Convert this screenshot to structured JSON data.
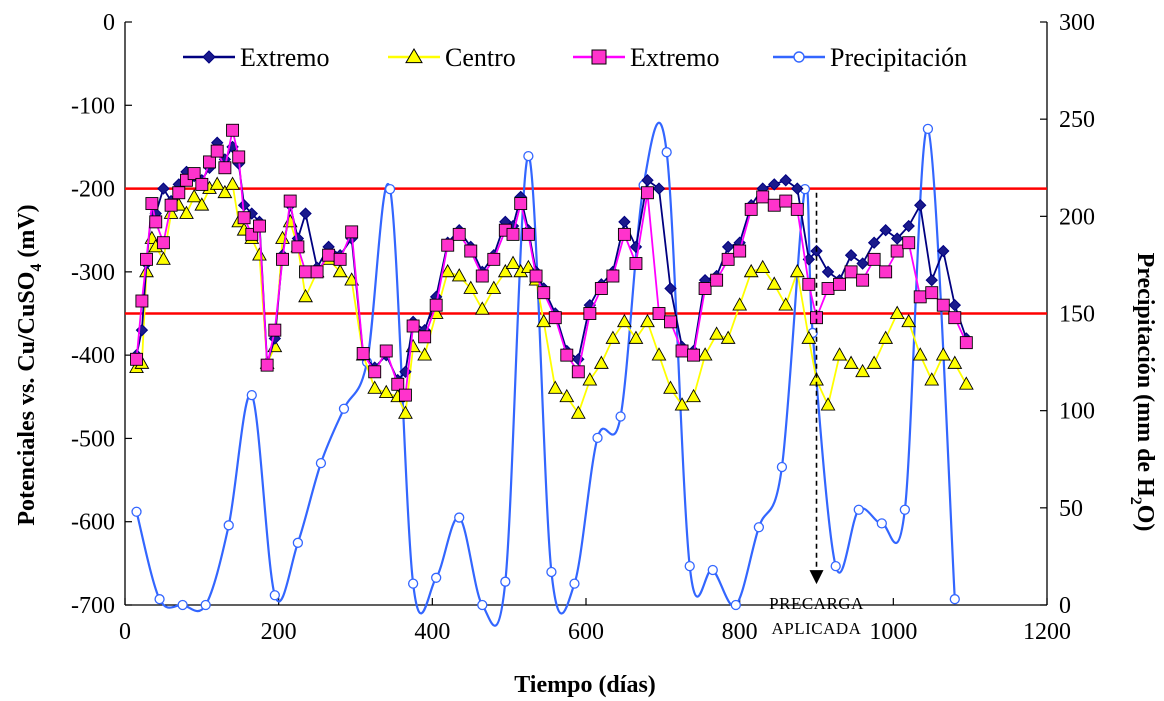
{
  "chart_data": {
    "type": "line",
    "xlabel": "Tiempo (días)",
    "ylabel_left": "Potenciales vs. Cu/CuSO",
    "ylabel_left_sub": "4",
    "ylabel_left_unit": "(mV)",
    "ylabel_right": "Precipitación (mm de H",
    "ylabel_right_sub": "2",
    "ylabel_right_unit": "O)",
    "xlim": [
      0,
      1200
    ],
    "ylim_left": [
      -700,
      0
    ],
    "ylim_right": [
      0,
      300
    ],
    "x_ticks": [
      "0",
      "200",
      "400",
      "600",
      "800",
      "1000",
      "1200"
    ],
    "y_left_ticks": [
      "0",
      "-100",
      "-200",
      "-300",
      "-400",
      "-500",
      "-600",
      "-700"
    ],
    "y_right_ticks": [
      "300",
      "250",
      "200",
      "150",
      "100",
      "50",
      "0"
    ],
    "grid": false,
    "legend_placement": "top",
    "reference_lines": [
      {
        "y": -200,
        "color": "#ff0000"
      },
      {
        "y": -350,
        "color": "#ff0000"
      }
    ],
    "annotation": {
      "line1": "PRECARGA",
      "line2": "APLICADA",
      "arrow_x": 900,
      "arrow_from_y": -205,
      "arrow_to_y": -675
    },
    "series": [
      {
        "name": "Extremo",
        "axis": "left",
        "marker": "diamond",
        "color": "#000080",
        "fill": "#1a1a8c",
        "x": [
          15,
          22,
          28,
          35,
          40,
          50,
          60,
          70,
          80,
          90,
          100,
          110,
          120,
          130,
          140,
          148,
          155,
          165,
          175,
          185,
          195,
          205,
          215,
          225,
          235,
          250,
          265,
          280,
          295,
          310,
          325,
          340,
          355,
          365,
          375,
          390,
          405,
          420,
          435,
          450,
          465,
          480,
          495,
          505,
          515,
          525,
          535,
          545,
          560,
          575,
          590,
          605,
          620,
          635,
          650,
          665,
          680,
          695,
          710,
          725,
          740,
          755,
          770,
          785,
          800,
          815,
          830,
          845,
          860,
          875,
          890,
          900,
          915,
          930,
          945,
          960,
          975,
          990,
          1005,
          1020,
          1035,
          1050,
          1065,
          1080,
          1095
        ],
        "values": [
          -400,
          -370,
          -290,
          -220,
          -230,
          -200,
          -215,
          -195,
          -180,
          -185,
          -190,
          -175,
          -145,
          -165,
          -150,
          -170,
          -220,
          -230,
          -240,
          -410,
          -380,
          -280,
          -220,
          -260,
          -230,
          -295,
          -270,
          -280,
          -260,
          -400,
          -415,
          -400,
          -430,
          -420,
          -360,
          -370,
          -330,
          -265,
          -250,
          -270,
          -300,
          -280,
          -240,
          -245,
          -210,
          -250,
          -300,
          -320,
          -350,
          -395,
          -405,
          -340,
          -315,
          -300,
          -240,
          -270,
          -190,
          -200,
          -320,
          -390,
          -395,
          -310,
          -305,
          -270,
          -265,
          -220,
          -200,
          -195,
          -190,
          -200,
          -285,
          -275,
          -300,
          -310,
          -280,
          -290,
          -265,
          -250,
          -260,
          -245,
          -220,
          -310,
          -275,
          -340,
          -380
        ]
      },
      {
        "name": "Centro",
        "axis": "left",
        "marker": "triangle",
        "color": "#ffff00",
        "fill": "#ffff00",
        "x": [
          15,
          22,
          28,
          35,
          40,
          50,
          60,
          70,
          80,
          90,
          100,
          110,
          120,
          130,
          140,
          148,
          155,
          165,
          175,
          185,
          195,
          205,
          215,
          225,
          235,
          250,
          265,
          280,
          295,
          310,
          325,
          340,
          355,
          365,
          375,
          390,
          405,
          420,
          435,
          450,
          465,
          480,
          495,
          505,
          515,
          525,
          535,
          545,
          560,
          575,
          590,
          605,
          620,
          635,
          650,
          665,
          680,
          695,
          710,
          725,
          740,
          755,
          770,
          785,
          800,
          815,
          830,
          845,
          860,
          875,
          890,
          900,
          915,
          930,
          945,
          960,
          975,
          990,
          1005,
          1020,
          1035,
          1050,
          1065,
          1080,
          1095
        ],
        "values": [
          -415,
          -410,
          -300,
          -260,
          -270,
          -285,
          -230,
          -220,
          -230,
          -210,
          -220,
          -200,
          -195,
          -205,
          -195,
          -240,
          -250,
          -260,
          -280,
          -410,
          -390,
          -260,
          -240,
          -270,
          -330,
          -300,
          -285,
          -300,
          -310,
          -400,
          -440,
          -445,
          -450,
          -470,
          -390,
          -400,
          -350,
          -300,
          -305,
          -320,
          -345,
          -320,
          -300,
          -290,
          -300,
          -295,
          -310,
          -360,
          -440,
          -450,
          -470,
          -430,
          -410,
          -380,
          -360,
          -380,
          -360,
          -400,
          -440,
          -460,
          -450,
          -400,
          -375,
          -380,
          -340,
          -300,
          -295,
          -315,
          -340,
          -300,
          -380,
          -430,
          -460,
          -400,
          -410,
          -420,
          -410,
          -380,
          -350,
          -360,
          -400,
          -430,
          -400,
          -410,
          -435
        ]
      },
      {
        "name": "Extremo",
        "axis": "left",
        "marker": "square",
        "color": "#ff00ff",
        "fill": "#ff33cc",
        "x": [
          15,
          22,
          28,
          35,
          40,
          50,
          60,
          70,
          80,
          90,
          100,
          110,
          120,
          130,
          140,
          148,
          155,
          165,
          175,
          185,
          195,
          205,
          215,
          225,
          235,
          250,
          265,
          280,
          295,
          310,
          325,
          340,
          355,
          365,
          375,
          390,
          405,
          420,
          435,
          450,
          465,
          480,
          495,
          505,
          515,
          525,
          535,
          545,
          560,
          575,
          590,
          605,
          620,
          635,
          650,
          665,
          680,
          695,
          710,
          725,
          740,
          755,
          770,
          785,
          800,
          815,
          830,
          845,
          860,
          875,
          890,
          900,
          915,
          930,
          945,
          960,
          975,
          990,
          1005,
          1020,
          1035,
          1050,
          1065,
          1080,
          1095
        ],
        "values": [
          -405,
          -335,
          -285,
          -218,
          -240,
          -265,
          -220,
          -205,
          -190,
          -182,
          -195,
          -168,
          -155,
          -175,
          -130,
          -162,
          -235,
          -255,
          -245,
          -412,
          -370,
          -285,
          -215,
          -270,
          -300,
          -300,
          -280,
          -285,
          -252,
          -398,
          -420,
          -395,
          -435,
          -448,
          -365,
          -378,
          -340,
          -268,
          -255,
          -275,
          -305,
          -285,
          -250,
          -255,
          -218,
          -255,
          -305,
          -325,
          -355,
          -400,
          -420,
          -350,
          -320,
          -305,
          -255,
          -290,
          -205,
          -350,
          -360,
          -395,
          -400,
          -320,
          -310,
          -285,
          -275,
          -225,
          -210,
          -220,
          -215,
          -225,
          -315,
          -355,
          -320,
          -315,
          -300,
          -310,
          -285,
          -300,
          -275,
          -265,
          -330,
          -325,
          -340,
          -355,
          -385
        ]
      },
      {
        "name": "Precipitación",
        "axis": "right",
        "marker": "circle-open",
        "color": "#3366ff",
        "fill": "#ffffff",
        "x": [
          15,
          45,
          75,
          105,
          135,
          165,
          195,
          225,
          255,
          285,
          315,
          345,
          375,
          405,
          435,
          465,
          495,
          525,
          555,
          585,
          615,
          645,
          675,
          705,
          735,
          765,
          795,
          825,
          855,
          885,
          895,
          925,
          955,
          985,
          1015,
          1045,
          1080
        ],
        "values": [
          48,
          3,
          0,
          0,
          41,
          108,
          5,
          32,
          73,
          101,
          125,
          214,
          11,
          14,
          45,
          0,
          12,
          231,
          17,
          11,
          86,
          97,
          216,
          233,
          20,
          18,
          0,
          40,
          71,
          214,
          140,
          20,
          49,
          42,
          49,
          245,
          3
        ]
      }
    ]
  }
}
